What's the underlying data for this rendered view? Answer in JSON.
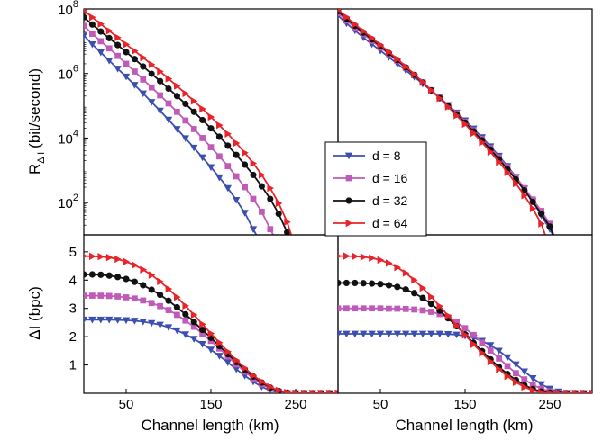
{
  "chart_data": [
    {
      "panel": "top-left",
      "type": "line",
      "xlabel": "",
      "ylabel": "R_ΔI (bit/second)",
      "ylabel_main": "R",
      "ylabel_sub": "Δ I",
      "ylabel_unit": "(bit/second)",
      "xlim": [
        0,
        300
      ],
      "ylim": [
        10,
        100000000
      ],
      "yscale": "log",
      "yticks": [
        100,
        10000,
        1000000,
        100000000
      ],
      "ytick_labels": [
        {
          "base": "10",
          "exp": "2"
        },
        {
          "base": "10",
          "exp": "4"
        },
        {
          "base": "10",
          "exp": "6"
        },
        {
          "base": "10",
          "exp": "8"
        }
      ],
      "x": [
        0,
        10,
        20,
        30,
        40,
        50,
        60,
        70,
        80,
        90,
        100,
        110,
        120,
        130,
        140,
        150,
        160,
        170,
        180,
        190,
        200,
        210,
        220,
        230,
        240,
        250,
        260
      ],
      "series": [
        {
          "name": "d = 8",
          "color": "#3b4fb0",
          "marker": "triangle-down",
          "values": [
            15000000,
            8000000,
            4500000,
            2500000,
            1400000,
            800000,
            440000,
            240000,
            130000,
            70000,
            37000,
            19000,
            9800,
            5000,
            2500,
            1250,
            600,
            280,
            120,
            48,
            15,
            null,
            null,
            null,
            null,
            null,
            null
          ]
        },
        {
          "name": "d = 16",
          "color": "#c05ab8",
          "marker": "square",
          "values": [
            30000000,
            17000000,
            10000000,
            6000000,
            3500000,
            2000000,
            1150000,
            650000,
            370000,
            210000,
            118000,
            65000,
            35000,
            19000,
            10000,
            5200,
            2700,
            1350,
            650,
            300,
            130,
            52,
            15,
            null,
            null,
            null,
            null
          ]
        },
        {
          "name": "d = 32",
          "color": "#111111",
          "marker": "circle",
          "values": [
            55000000,
            33000000,
            20000000,
            12500000,
            7600000,
            4600000,
            2800000,
            1650000,
            980000,
            580000,
            340000,
            200000,
            115000,
            65000,
            36000,
            20000,
            11000,
            5800,
            3000,
            1500,
            720,
            320,
            130,
            45,
            12,
            null,
            null
          ]
        },
        {
          "name": "d = 64",
          "color": "#e8242a",
          "marker": "triangle-right",
          "values": [
            90000000,
            55000000,
            34000000,
            21000000,
            13000000,
            8000000,
            5000000,
            3100000,
            1900000,
            1150000,
            690000,
            410000,
            240000,
            140000,
            80000,
            45000,
            25000,
            13500,
            7000,
            3500,
            1650,
            720,
            280,
            95,
            25,
            null,
            null
          ]
        }
      ]
    },
    {
      "panel": "top-right",
      "type": "line",
      "xlabel": "",
      "ylabel": "",
      "xlim": [
        0,
        300
      ],
      "ylim": [
        10,
        100000000
      ],
      "yscale": "log",
      "x": [
        0,
        10,
        20,
        30,
        40,
        50,
        60,
        70,
        80,
        90,
        100,
        110,
        120,
        130,
        140,
        150,
        160,
        170,
        180,
        190,
        200,
        210,
        220,
        230,
        240,
        250,
        260,
        270
      ],
      "series": [
        {
          "name": "d = 8",
          "color": "#3b4fb0",
          "marker": "triangle-down",
          "values": [
            62000000,
            36000000,
            21500000,
            13000000,
            8100000,
            5100000,
            3200000,
            2000000,
            1250000,
            780000,
            480000,
            295000,
            178000,
            105000,
            61000,
            35000,
            19500,
            10500,
            5500,
            2800,
            1350,
            620,
            270,
            110,
            40,
            15,
            null,
            null
          ]
        },
        {
          "name": "d = 16",
          "color": "#c05ab8",
          "marker": "square",
          "values": [
            75000000,
            44000000,
            26500000,
            16500000,
            10300000,
            6400000,
            4000000,
            2450000,
            1480000,
            880000,
            520000,
            305000,
            178000,
            102000,
            58000,
            32000,
            17500,
            9400,
            4900,
            2500,
            1250,
            600,
            280,
            125,
            55,
            22,
            null,
            null
          ]
        },
        {
          "name": "d = 32",
          "color": "#111111",
          "marker": "circle",
          "values": [
            85000000,
            50000000,
            30000000,
            18500000,
            11500000,
            7000000,
            4300000,
            2600000,
            1550000,
            900000,
            525000,
            300000,
            172000,
            97000,
            54000,
            30000,
            16000,
            8500,
            4400,
            2200,
            1080,
            520,
            240,
            105,
            45,
            18,
            null,
            null
          ]
        },
        {
          "name": "d = 64",
          "color": "#e8242a",
          "marker": "triangle-right",
          "values": [
            95000000,
            56000000,
            33500000,
            20500000,
            12600000,
            7700000,
            4650000,
            2800000,
            1650000,
            950000,
            545000,
            305000,
            170000,
            93000,
            50000,
            27000,
            14200,
            7300,
            3700,
            1800,
            860,
            390,
            165,
            65,
            22,
            null,
            null,
            null
          ]
        }
      ]
    },
    {
      "panel": "bottom-left",
      "type": "line",
      "xlabel": "Channel length (km)",
      "ylabel": "ΔI (bpc)",
      "xlim": [
        0,
        300
      ],
      "ylim": [
        0,
        5.6
      ],
      "xticks": [
        50,
        150,
        250
      ],
      "yticks": [
        1,
        2,
        3,
        4,
        5
      ],
      "x": [
        0,
        10,
        20,
        30,
        40,
        50,
        60,
        70,
        80,
        90,
        100,
        110,
        120,
        130,
        140,
        150,
        160,
        170,
        180,
        190,
        200,
        210,
        220,
        230,
        240,
        250,
        260,
        270,
        280,
        290,
        300
      ],
      "series": [
        {
          "name": "d = 8",
          "color": "#3b4fb0",
          "marker": "triangle-down",
          "values": [
            2.6,
            2.6,
            2.6,
            2.6,
            2.59,
            2.58,
            2.56,
            2.53,
            2.48,
            2.42,
            2.33,
            2.22,
            2.08,
            1.92,
            1.74,
            1.54,
            1.32,
            1.09,
            0.85,
            0.62,
            0.41,
            0.23,
            0.1,
            0.03,
            0,
            0,
            0,
            0,
            0,
            0,
            0
          ]
        },
        {
          "name": "d = 16",
          "color": "#c05ab8",
          "marker": "square",
          "values": [
            3.45,
            3.45,
            3.45,
            3.44,
            3.42,
            3.39,
            3.35,
            3.28,
            3.19,
            3.08,
            2.94,
            2.77,
            2.57,
            2.35,
            2.11,
            1.85,
            1.58,
            1.3,
            1.02,
            0.76,
            0.52,
            0.32,
            0.16,
            0.06,
            0.01,
            0,
            0,
            0,
            0,
            0,
            0
          ]
        },
        {
          "name": "d = 32",
          "color": "#111111",
          "marker": "circle",
          "values": [
            4.2,
            4.2,
            4.19,
            4.16,
            4.11,
            4.04,
            3.94,
            3.82,
            3.66,
            3.48,
            3.27,
            3.04,
            2.79,
            2.52,
            2.24,
            1.96,
            1.67,
            1.38,
            1.1,
            0.83,
            0.59,
            0.38,
            0.2,
            0.08,
            0.02,
            0,
            0,
            0,
            0,
            0,
            0
          ]
        },
        {
          "name": "d = 64",
          "color": "#e8242a",
          "marker": "triangle-right",
          "values": [
            4.85,
            4.84,
            4.83,
            4.8,
            4.74,
            4.65,
            4.53,
            4.37,
            4.18,
            3.95,
            3.69,
            3.4,
            3.09,
            2.77,
            2.44,
            2.11,
            1.79,
            1.47,
            1.17,
            0.89,
            0.63,
            0.41,
            0.23,
            0.1,
            0.03,
            0,
            0,
            0,
            0,
            0,
            0
          ]
        }
      ]
    },
    {
      "panel": "bottom-right",
      "type": "line",
      "xlabel": "Channel length (km)",
      "ylabel": "",
      "xlim": [
        0,
        300
      ],
      "ylim": [
        0,
        5.6
      ],
      "xticks": [
        50,
        150,
        250
      ],
      "x": [
        0,
        10,
        20,
        30,
        40,
        50,
        60,
        70,
        80,
        90,
        100,
        110,
        120,
        130,
        140,
        150,
        160,
        170,
        180,
        190,
        200,
        210,
        220,
        230,
        240,
        250,
        260,
        270,
        280,
        290,
        300
      ],
      "series": [
        {
          "name": "d = 8",
          "color": "#3b4fb0",
          "marker": "triangle-down",
          "values": [
            2.1,
            2.1,
            2.1,
            2.1,
            2.1,
            2.1,
            2.1,
            2.1,
            2.1,
            2.1,
            2.1,
            2.1,
            2.1,
            2.09,
            2.07,
            2.03,
            1.96,
            1.85,
            1.7,
            1.5,
            1.27,
            1.02,
            0.77,
            0.53,
            0.32,
            0.16,
            0.06,
            0.01,
            0,
            0,
            0
          ]
        },
        {
          "name": "d = 16",
          "color": "#c05ab8",
          "marker": "square",
          "values": [
            3.0,
            3.0,
            3.0,
            3.0,
            3.0,
            3.0,
            2.99,
            2.99,
            2.98,
            2.96,
            2.93,
            2.88,
            2.8,
            2.68,
            2.51,
            2.3,
            2.06,
            1.79,
            1.51,
            1.23,
            0.96,
            0.71,
            0.49,
            0.3,
            0.16,
            0.07,
            0.02,
            0,
            0,
            0,
            0
          ]
        },
        {
          "name": "d = 32",
          "color": "#111111",
          "marker": "circle",
          "values": [
            3.9,
            3.9,
            3.9,
            3.89,
            3.88,
            3.86,
            3.82,
            3.76,
            3.67,
            3.54,
            3.37,
            3.16,
            2.92,
            2.65,
            2.37,
            2.08,
            1.78,
            1.49,
            1.2,
            0.93,
            0.68,
            0.47,
            0.29,
            0.15,
            0.06,
            0.02,
            0,
            0,
            0,
            0,
            0
          ]
        },
        {
          "name": "d = 64",
          "color": "#e8242a",
          "marker": "triangle-right",
          "values": [
            4.85,
            4.85,
            4.84,
            4.82,
            4.78,
            4.71,
            4.6,
            4.45,
            4.25,
            4.0,
            3.72,
            3.41,
            3.08,
            2.74,
            2.4,
            2.06,
            1.73,
            1.42,
            1.12,
            0.85,
            0.6,
            0.39,
            0.22,
            0.1,
            0.03,
            0,
            0,
            0,
            0,
            0,
            0
          ]
        }
      ]
    }
  ],
  "legend": {
    "placement": "center",
    "entries": [
      {
        "label": "d = 8",
        "color": "#3b4fb0",
        "marker": "triangle-down"
      },
      {
        "label": "d = 16",
        "color": "#c05ab8",
        "marker": "square"
      },
      {
        "label": "d = 32",
        "color": "#111111",
        "marker": "circle"
      },
      {
        "label": "d = 64",
        "color": "#e8242a",
        "marker": "triangle-right"
      }
    ]
  }
}
